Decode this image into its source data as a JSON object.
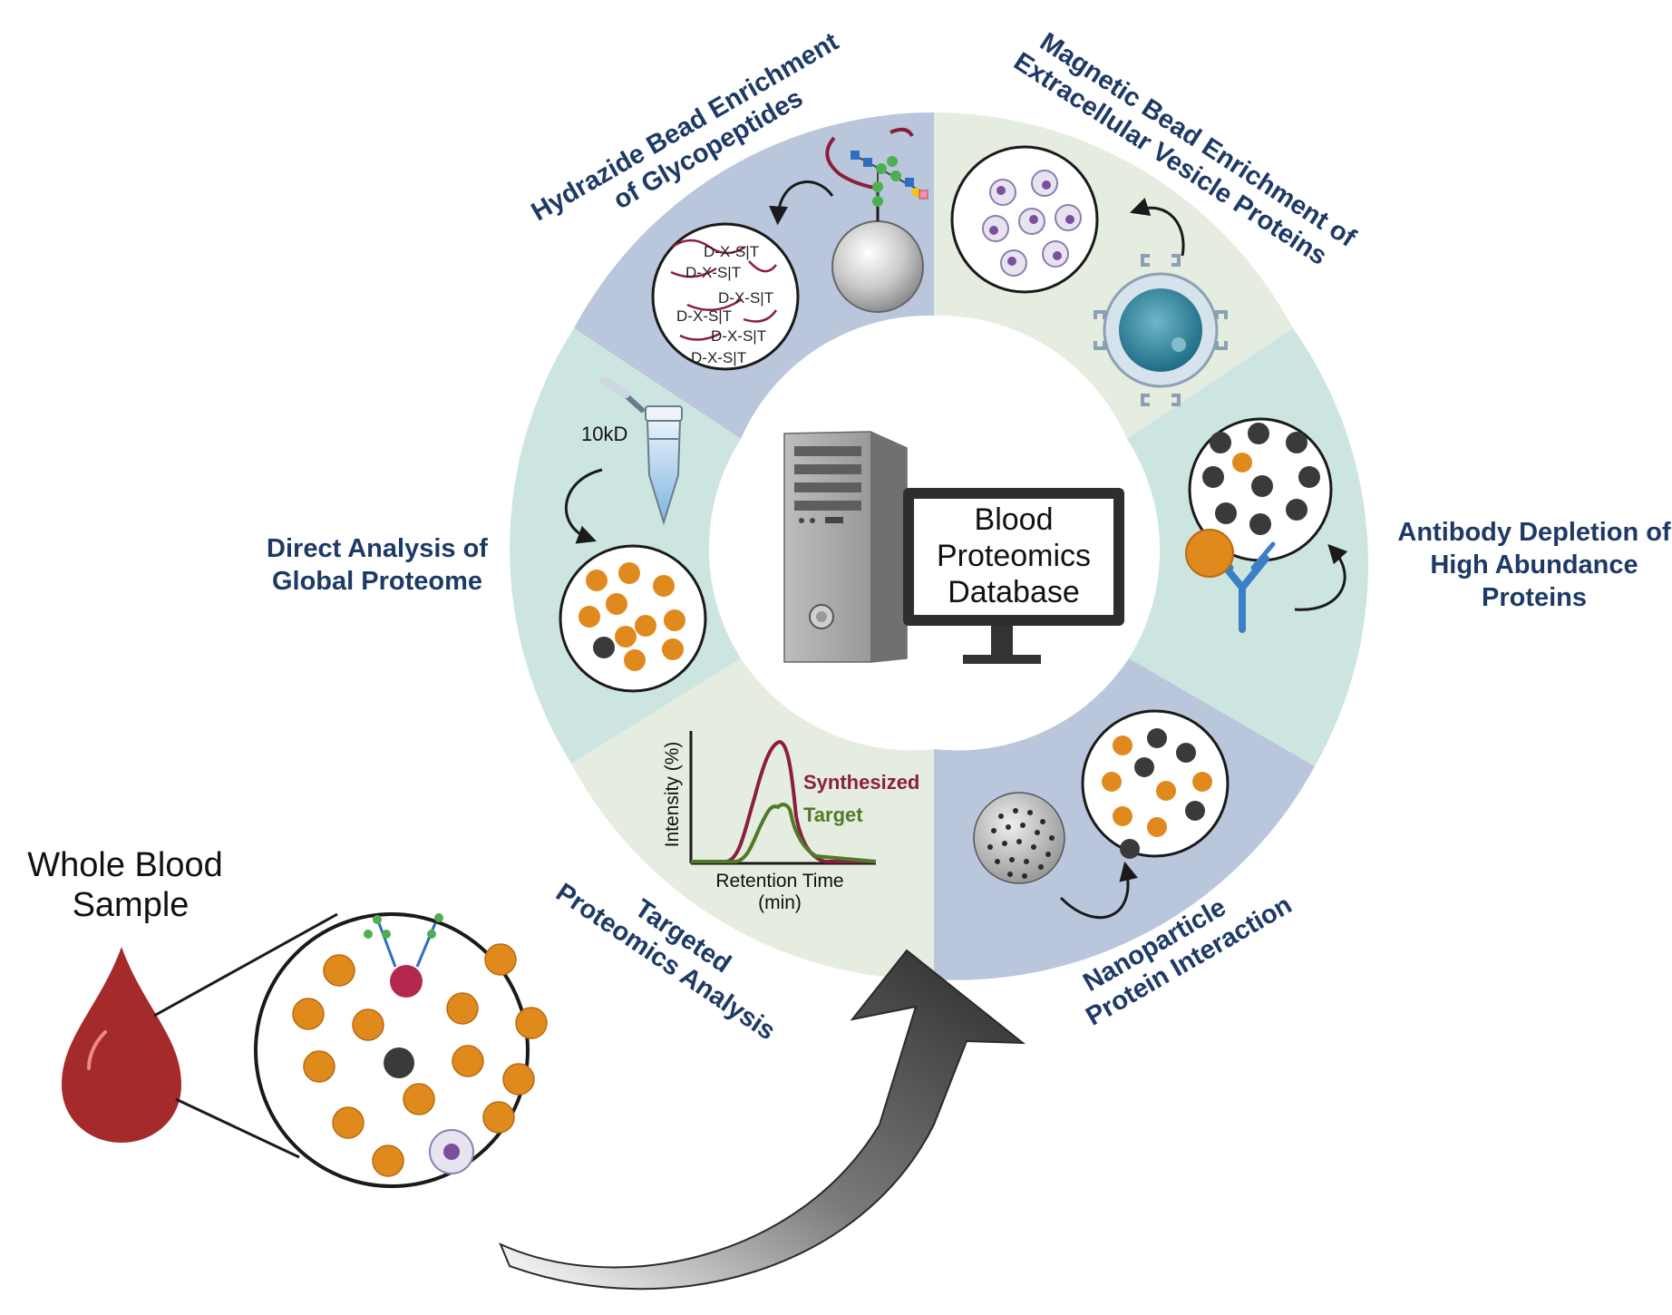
{
  "center": {
    "line1": "Blood",
    "line2": "Proteomics",
    "line3": "Database"
  },
  "whole_blood": {
    "line1": "Whole Blood",
    "line2": "Sample"
  },
  "sections": {
    "hydrazide": {
      "line1": "Hydrazide Bead Enrichment",
      "line2": "of Glycopeptides",
      "motif": "D-X-S|T",
      "color": "#b9c6dc"
    },
    "magnetic": {
      "line1": "Magnetic Bead Enrichment of",
      "line2": "Extracellular Vesicle Proteins",
      "color": "#e5ece0"
    },
    "antibody": {
      "line1": "Antibody Depletion of",
      "line2": "High Abundance",
      "line3": "Proteins",
      "color": "#cde5e1"
    },
    "nanoparticle": {
      "line1": "Nanoparticle",
      "line2": "Protein Interaction",
      "color": "#b9c6dc"
    },
    "targeted": {
      "line1": "Targeted",
      "line2": "Proteomics Analysis",
      "color": "#e5ece0",
      "chart": {
        "ylabel": "Intensity (%)",
        "xlabel_1": "Retention Time",
        "xlabel_2": "(min)",
        "series": [
          {
            "name": "Synthesized",
            "color": "#8b1e3f"
          },
          {
            "name": "Target",
            "color": "#4f7a28"
          }
        ]
      }
    },
    "direct": {
      "line1": "Direct Analysis of",
      "line2": "Global Proteome",
      "filter_label": "10kD",
      "color": "#cde5e1"
    }
  },
  "colors": {
    "label": "#1d3a66",
    "protein": "#e08a1e",
    "protein_dark": "#3a3a3a",
    "blood": "#a52a2a"
  }
}
